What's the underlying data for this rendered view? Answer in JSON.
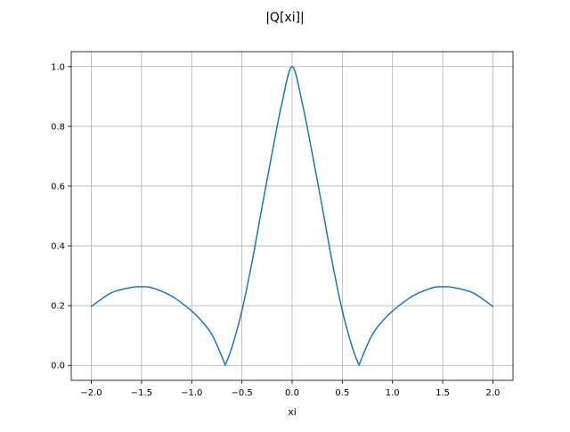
{
  "chart_data": {
    "type": "line",
    "title": "|Q[xi]|",
    "xlabel": "xi",
    "ylabel": "",
    "xlim": [
      -2.2,
      2.2
    ],
    "ylim": [
      -0.05,
      1.05
    ],
    "xticks": [
      -2.0,
      -1.5,
      -1.0,
      -0.5,
      0.0,
      0.5,
      1.0,
      1.5,
      2.0
    ],
    "xtick_labels": [
      "−2.0",
      "−1.5",
      "−1.0",
      "−0.5",
      "0.0",
      "0.5",
      "1.0",
      "1.5",
      "2.0"
    ],
    "yticks": [
      0.0,
      0.2,
      0.4,
      0.6,
      0.8,
      1.0
    ],
    "ytick_labels": [
      "0.0",
      "0.2",
      "0.4",
      "0.6",
      "0.8",
      "1.0"
    ],
    "grid": true,
    "legend": false,
    "color": "#1f77b4",
    "series": [
      {
        "x": [
          -2.0,
          -1.8,
          -1.6,
          -1.5,
          -1.4,
          -1.2,
          -1.0,
          -0.9,
          -0.8,
          -0.7,
          -0.667,
          -0.6,
          -0.5,
          -0.4,
          -0.3,
          -0.2,
          -0.1,
          0.0,
          0.1,
          0.2,
          0.3,
          0.4,
          0.5,
          0.6,
          0.667,
          0.7,
          0.8,
          0.9,
          1.0,
          1.2,
          1.4,
          1.5,
          1.6,
          1.8,
          2.0
        ],
        "y": [
          0.197,
          0.243,
          0.261,
          0.263,
          0.26,
          0.232,
          0.182,
          0.148,
          0.104,
          0.03,
          0.0,
          0.06,
          0.183,
          0.345,
          0.53,
          0.71,
          0.88,
          1.0,
          0.88,
          0.71,
          0.53,
          0.345,
          0.183,
          0.06,
          0.0,
          0.03,
          0.104,
          0.148,
          0.182,
          0.232,
          0.26,
          0.263,
          0.261,
          0.243,
          0.197
        ]
      }
    ]
  }
}
